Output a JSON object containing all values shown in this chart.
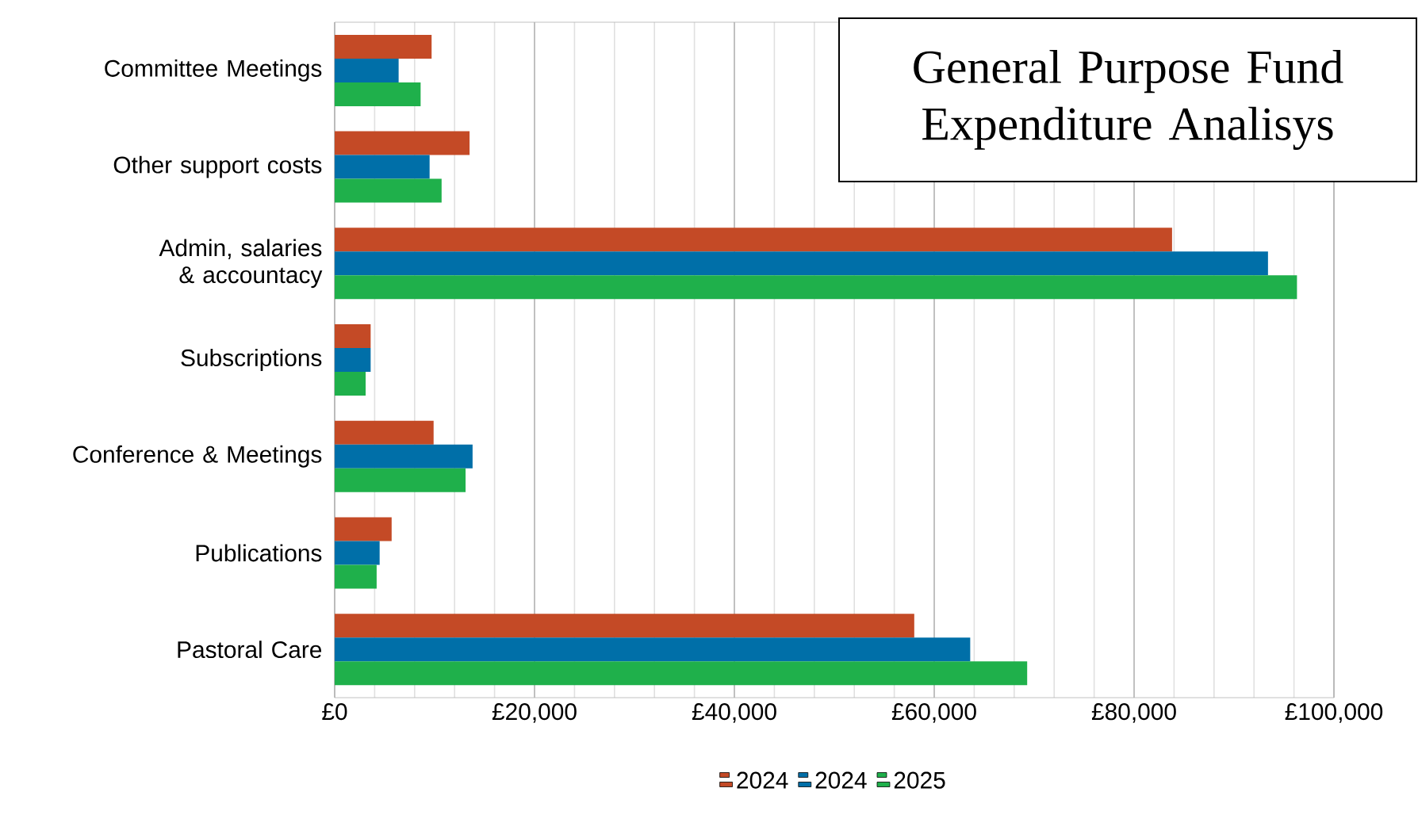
{
  "chart_data": {
    "type": "bar",
    "orientation": "horizontal",
    "title": "General Purpose Fund Expenditure Analisys",
    "categories": [
      "Committee Meetings",
      "Other support costs",
      "Admin, salaries & accountacy",
      "Subscriptions",
      "Conference & Meetings",
      "Publications",
      "Pastoral Care"
    ],
    "series": [
      {
        "name": "2024",
        "color": "#c44a26",
        "values": [
          9700,
          13500,
          83800,
          3600,
          9900,
          5700,
          58000
        ]
      },
      {
        "name": "2024",
        "color": "#006fa8",
        "values": [
          6400,
          9500,
          93400,
          3600,
          13800,
          4500,
          63600
        ]
      },
      {
        "name": "2025",
        "color": "#1fb04b",
        "values": [
          8600,
          10700,
          96300,
          3100,
          13100,
          4200,
          69300
        ]
      }
    ],
    "xlim": [
      0,
      100000
    ],
    "xticks": [
      {
        "value": 0,
        "label": "£0"
      },
      {
        "value": 20000,
        "label": "£20,000"
      },
      {
        "value": 40000,
        "label": "£40,000"
      },
      {
        "value": 60000,
        "label": "£60,000"
      },
      {
        "value": 80000,
        "label": "£80,000"
      },
      {
        "value": 100000,
        "label": "£100,000"
      }
    ],
    "grid": "x",
    "legend": "bottom"
  }
}
